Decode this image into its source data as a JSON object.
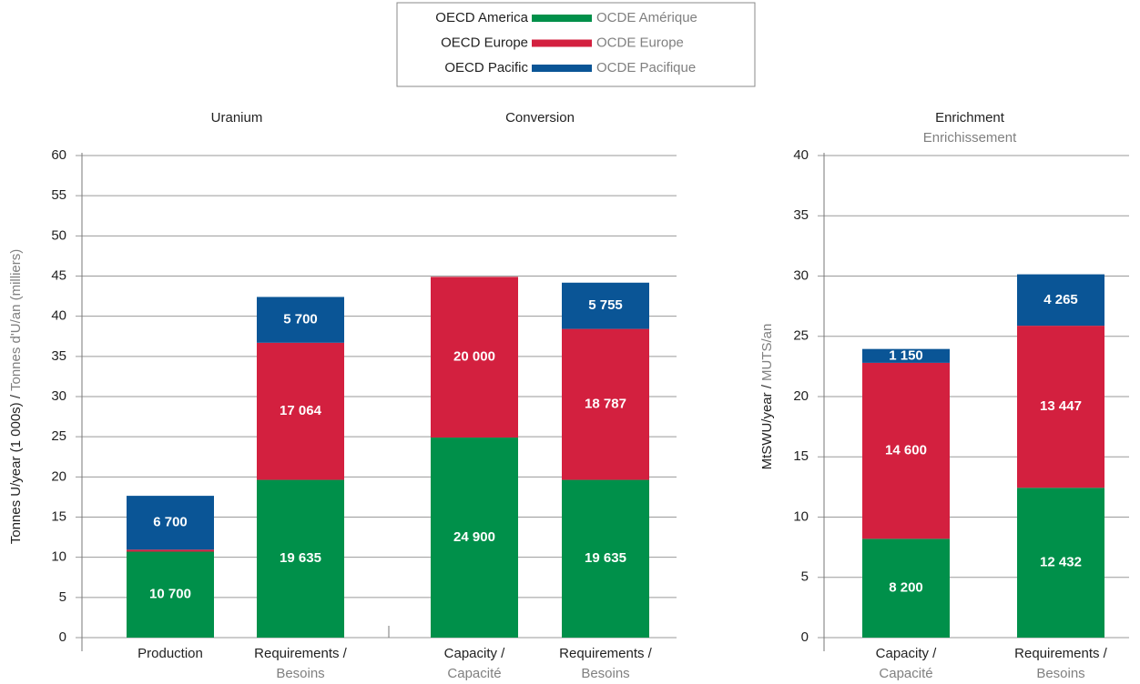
{
  "legend": {
    "series": [
      {
        "name": "OECD America",
        "name_fr": "OCDE Amérique",
        "color": "#00904a"
      },
      {
        "name": "OECD Europe",
        "name_fr": "OCDE Europe",
        "color": "#d3203f"
      },
      {
        "name": "OECD Pacific",
        "name_fr": "OCDE Pacifique",
        "color": "#0a5596"
      }
    ]
  },
  "chart_data": [
    {
      "type": "stacked_bar",
      "groups": [
        "Uranium",
        "Conversion"
      ],
      "y_label": "Tonnes U/year (1 000s) /",
      "y_label_fr": "Tonnes d'U/an (milliers)",
      "categories": [
        [
          "Production"
        ],
        [
          "Requirements /",
          "Besoins"
        ],
        [
          "Capacity /",
          "Capacité"
        ],
        [
          "Requirements /",
          "Besoins"
        ]
      ],
      "series": [
        {
          "color": "#00904a",
          "values": [
            10.7,
            19.635,
            24.9,
            19.635
          ],
          "value_labels": [
            "10 700",
            "19 635",
            "24 900",
            "19 635"
          ]
        },
        {
          "color": "#d3203f",
          "values": [
            0.249,
            17.064,
            20.0,
            18.787
          ],
          "value_labels": [
            "249",
            "17 064",
            "20 000",
            "18 787"
          ]
        },
        {
          "color": "#0a5596",
          "values": [
            6.7,
            5.7,
            null,
            5.755
          ],
          "value_labels": [
            "6 700",
            "5 700",
            null,
            "5 755"
          ]
        }
      ],
      "ylim": [
        0,
        60
      ],
      "yticks": [
        0,
        5,
        10,
        15,
        20,
        25,
        30,
        35,
        40,
        45,
        50,
        55,
        60
      ],
      "grid": true
    },
    {
      "type": "stacked_bar",
      "title": "Enrichment",
      "title_fr": "Enrichissement",
      "y_label": "MtSWU/year /",
      "y_label_fr": "MUTS/an",
      "categories": [
        [
          "Capacity /",
          "Capacité"
        ],
        [
          "Requirements /",
          "Besoins"
        ]
      ],
      "series": [
        {
          "color": "#00904a",
          "values": [
            8.2,
            12.432
          ],
          "value_labels": [
            "8 200",
            "12 432"
          ]
        },
        {
          "color": "#d3203f",
          "values": [
            14.6,
            13.447
          ],
          "value_labels": [
            "14 600",
            "13 447"
          ]
        },
        {
          "color": "#0a5596",
          "values": [
            1.15,
            4.265
          ],
          "value_labels": [
            "1 150",
            "4 265"
          ]
        }
      ],
      "ylim": [
        0,
        40
      ],
      "yticks": [
        0,
        5,
        10,
        15,
        20,
        25,
        30,
        35,
        40
      ],
      "grid": true
    }
  ]
}
